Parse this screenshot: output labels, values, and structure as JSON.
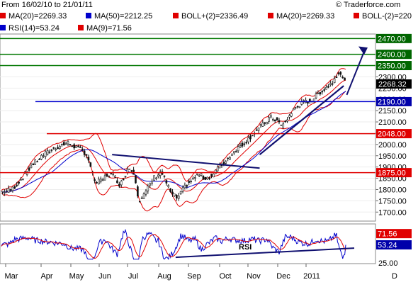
{
  "header": {
    "date_range": "From 16/02/10 to 21/01/11",
    "copyright": "© Traderforce.com",
    "legend_row1": [
      {
        "label": "MA(20)=2269.33",
        "color": "#e00000"
      },
      {
        "label": "MA(50)=2212.25",
        "color": "#0000cc"
      },
      {
        "label": "BOLL+(2)=2336.49",
        "color": "#e00000"
      },
      {
        "label": "MA(20)=2269.33",
        "color": "#e00000"
      },
      {
        "label": "BOLL-(2)=220",
        "color": "#e00000"
      }
    ],
    "legend_row2": [
      {
        "label": "RSI(14)=53.24",
        "color": "#0000cc"
      },
      {
        "label": "MA(9)=71.56",
        "color": "#e00000"
      }
    ]
  },
  "colors": {
    "price": "#111111",
    "ma": "#e00000",
    "ma50": "#0000cc",
    "support": "#e00000",
    "resistance": "#007700",
    "trendline": "#101070",
    "current_price_bg": "#000000",
    "blue_level_bg": "#0000aa",
    "red_level_bg": "#e00000",
    "green_level_bg": "#006600"
  },
  "chart_data": [
    {
      "type": "candlestick",
      "title": "",
      "ylim": [
        1660,
        2490
      ],
      "y_ticks": [
        "2300.00",
        "2250.00",
        "2200.00",
        "2150.00",
        "2100.00",
        "2050.00",
        "2000.00",
        "1950.00",
        "1900.00",
        "1850.00",
        "1800.00",
        "1750.00",
        "1700.00"
      ],
      "x_ticks": [
        "Mar",
        "Apr",
        "May",
        "Jun",
        "Jul",
        "Aug",
        "Sep",
        "Oct",
        "Nov",
        "Dec",
        "2011",
        "D"
      ],
      "price_keypoints": [
        [
          0,
          1790
        ],
        [
          10,
          1800
        ],
        [
          20,
          1850
        ],
        [
          30,
          1910
        ],
        [
          40,
          1950
        ],
        [
          50,
          1980
        ],
        [
          60,
          2000
        ],
        [
          65,
          2005
        ],
        [
          72,
          1990
        ],
        [
          80,
          1970
        ],
        [
          84,
          1950
        ],
        [
          88,
          1880
        ],
        [
          92,
          1830
        ],
        [
          98,
          1840
        ],
        [
          104,
          1870
        ],
        [
          110,
          1860
        ],
        [
          116,
          1820
        ],
        [
          124,
          1900
        ],
        [
          130,
          1870
        ],
        [
          134,
          1750
        ],
        [
          140,
          1780
        ],
        [
          148,
          1850
        ],
        [
          156,
          1880
        ],
        [
          160,
          1840
        ],
        [
          166,
          1780
        ],
        [
          172,
          1760
        ],
        [
          180,
          1820
        ],
        [
          186,
          1840
        ],
        [
          192,
          1870
        ],
        [
          198,
          1850
        ],
        [
          205,
          1860
        ],
        [
          212,
          1900
        ],
        [
          218,
          1920
        ],
        [
          225,
          1960
        ],
        [
          232,
          1990
        ],
        [
          240,
          2020
        ],
        [
          248,
          2060
        ],
        [
          256,
          2090
        ],
        [
          262,
          2120
        ],
        [
          268,
          2110
        ],
        [
          274,
          2080
        ],
        [
          280,
          2120
        ],
        [
          286,
          2160
        ],
        [
          292,
          2180
        ],
        [
          298,
          2190
        ],
        [
          304,
          2200
        ],
        [
          310,
          2230
        ],
        [
          316,
          2250
        ],
        [
          322,
          2270
        ],
        [
          326,
          2300
        ],
        [
          330,
          2330
        ],
        [
          332,
          2300
        ],
        [
          336,
          2270
        ]
      ],
      "price_display_range": [
        1690,
        2340
      ],
      "levels": [
        {
          "name": "resistance-2470",
          "label": "2470.00",
          "value": 2470,
          "kind": "green"
        },
        {
          "name": "resistance-2400",
          "label": "2400.00",
          "value": 2400,
          "kind": "green"
        },
        {
          "name": "resistance-2350",
          "label": "2350.00",
          "value": 2350,
          "kind": "green"
        },
        {
          "name": "support-2190",
          "label": "2190.00",
          "value": 2190,
          "kind": "blue"
        },
        {
          "name": "support-2048",
          "label": "2048.00",
          "value": 2048,
          "kind": "red"
        },
        {
          "name": "support-1875",
          "label": "1875.00",
          "value": 1875,
          "kind": "red"
        }
      ],
      "current_price": {
        "label": "2268.32",
        "value": 2268.32
      },
      "indicators": [
        "MA(20)",
        "MA(50)",
        "BOLL+(2)",
        "BOLL-(2)"
      ]
    },
    {
      "type": "line",
      "title": "",
      "name_label": "RSI",
      "ylim": [
        25,
        85
      ],
      "y_ticks": [
        "25.00"
      ],
      "series": [
        {
          "name": "RSI(14)",
          "last": 53.24,
          "last_label": "53.24"
        },
        {
          "name": "MA(9)",
          "last": 71.56,
          "last_label": "71.56"
        }
      ]
    }
  ]
}
